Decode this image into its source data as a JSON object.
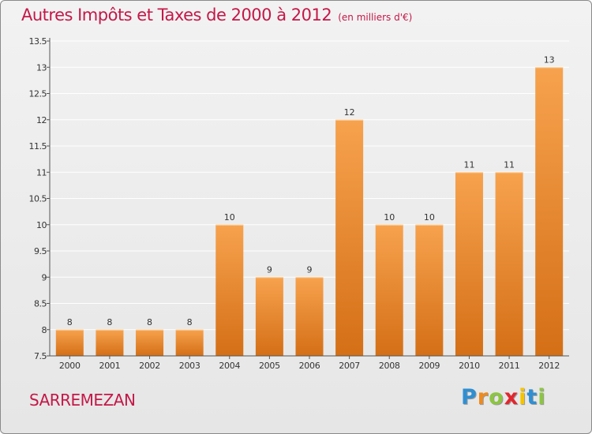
{
  "title": "Autres Impôts et Taxes de 2000 à 2012",
  "subtitle": "(en milliers d'€)",
  "commune": "SARREMEZAN",
  "logo": {
    "letters": [
      "P",
      "r",
      "o",
      "x",
      "i",
      "t",
      "i"
    ],
    "colors": [
      "#2f8fd2",
      "#f08a1d",
      "#8cc641",
      "#e2262d",
      "#f5c400",
      "#2f8fd2",
      "#8cc641"
    ]
  },
  "colors": {
    "title": "#c41848",
    "bar_light": "#f7a24e",
    "bar_dark": "#d46f16",
    "grid": "#ffffff",
    "axis": "#555555"
  },
  "chart_data": {
    "type": "bar",
    "categories": [
      "2000",
      "2001",
      "2002",
      "2003",
      "2004",
      "2005",
      "2006",
      "2007",
      "2008",
      "2009",
      "2010",
      "2011",
      "2012"
    ],
    "values": [
      8,
      8,
      8,
      8,
      10,
      9,
      9,
      12,
      10,
      10,
      11,
      11,
      13
    ],
    "data_labels": [
      "8",
      "8",
      "8",
      "8",
      "10",
      "9",
      "9",
      "12",
      "10",
      "10",
      "11",
      "11",
      "13"
    ],
    "yticks": [
      7.5,
      8,
      8.5,
      9,
      9.5,
      10,
      10.5,
      11,
      11.5,
      12,
      12.5,
      13,
      13.5
    ],
    "ytick_labels": [
      "7.5",
      "8",
      "8.5",
      "9",
      "9.5",
      "10",
      "10.5",
      "11",
      "11.5",
      "12",
      "12.5",
      "13",
      "13.5"
    ],
    "ylim": [
      7.5,
      13.5
    ],
    "grid": true,
    "xlabel": "",
    "ylabel": ""
  }
}
